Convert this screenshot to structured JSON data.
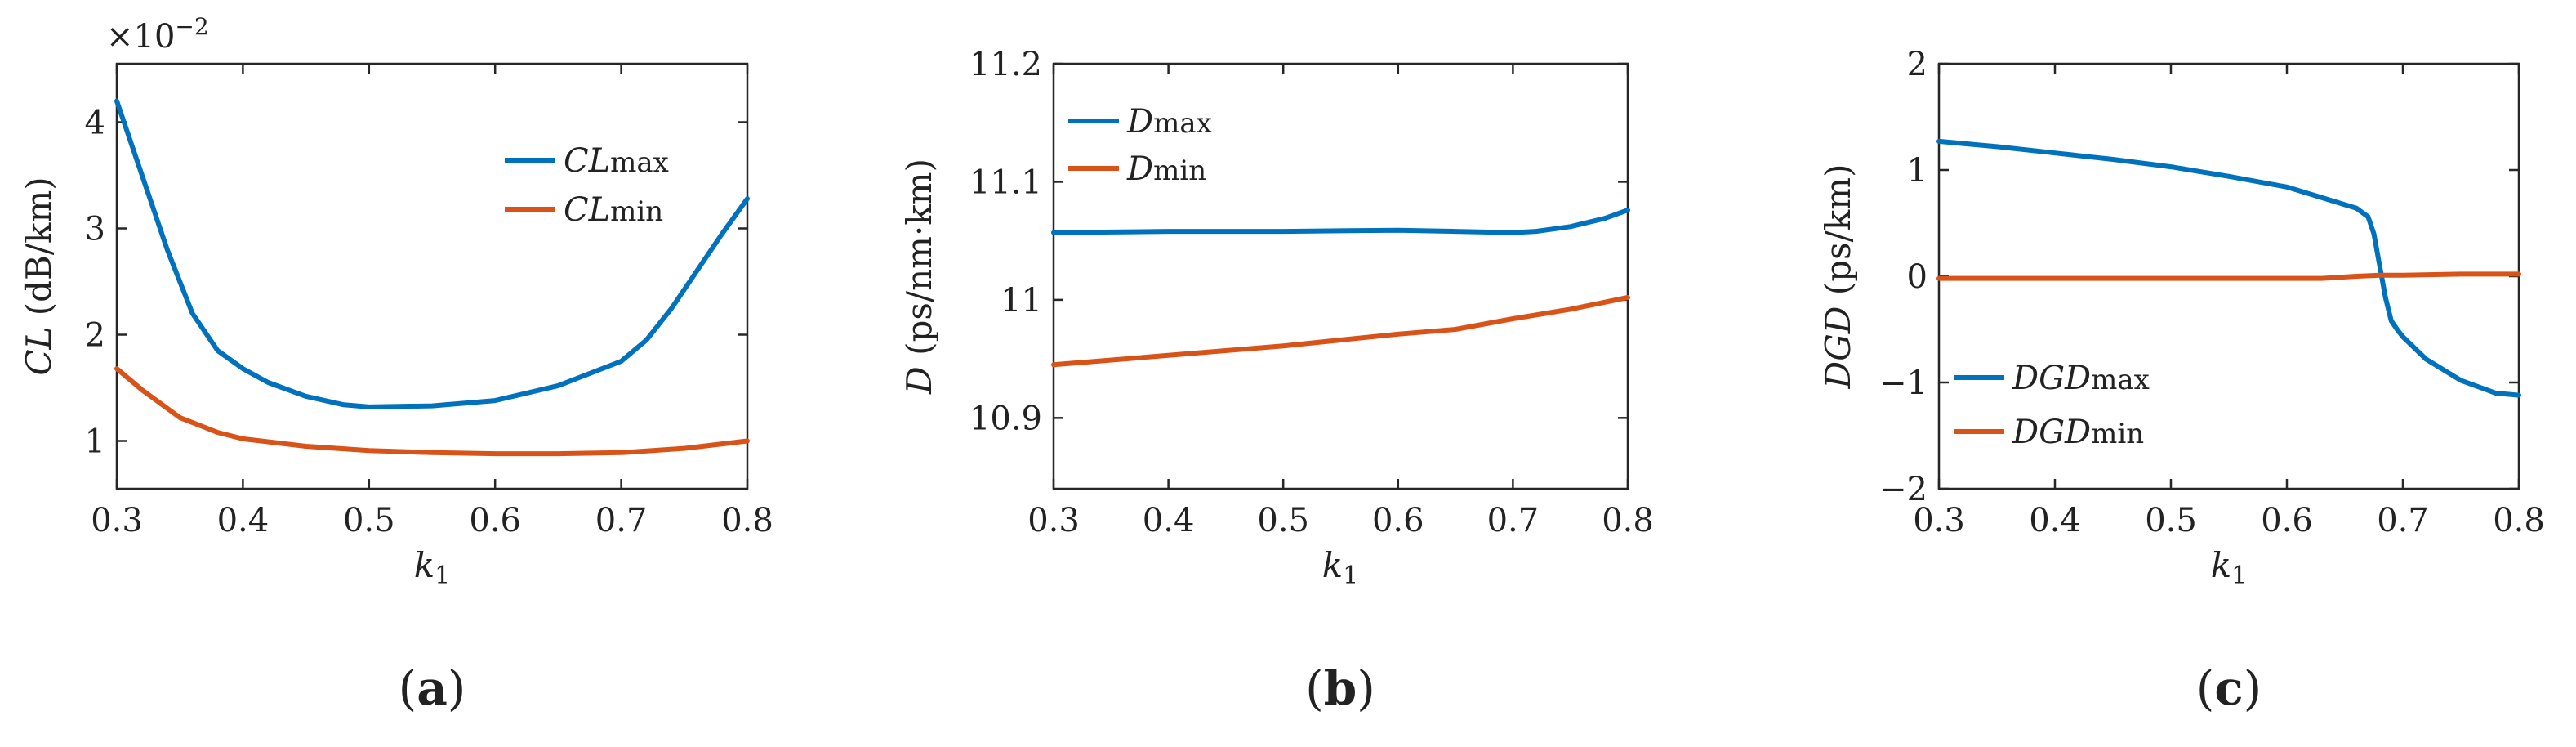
{
  "chart_data": [
    {
      "type": "line",
      "panel_label": "a",
      "exponent": "×10",
      "exponent_power": "−2",
      "xlabel": "k",
      "xlabel_sub": "1",
      "ylabel": "CL",
      "ylabel_unit": "(dB/km)",
      "xlim": [
        0.3,
        0.8
      ],
      "ylim": [
        0.55,
        4.55
      ],
      "xticks": [
        0.3,
        0.4,
        0.5,
        0.6,
        0.7,
        0.8
      ],
      "xtick_labels": [
        "0.3",
        "0.4",
        "0.5",
        "0.6",
        "0.7",
        "0.8"
      ],
      "yticks": [
        1,
        2,
        3,
        4
      ],
      "ytick_labels": [
        "1",
        "2",
        "3",
        "4"
      ],
      "legend_position": "top-right",
      "series": [
        {
          "name": "CL",
          "name_sub": "max",
          "color": "#0072BD",
          "x": [
            0.3,
            0.32,
            0.34,
            0.36,
            0.38,
            0.4,
            0.42,
            0.45,
            0.48,
            0.5,
            0.55,
            0.6,
            0.65,
            0.7,
            0.72,
            0.74,
            0.76,
            0.78,
            0.8
          ],
          "y": [
            4.2,
            3.5,
            2.8,
            2.2,
            1.85,
            1.68,
            1.55,
            1.42,
            1.34,
            1.32,
            1.33,
            1.38,
            1.52,
            1.75,
            1.95,
            2.25,
            2.6,
            2.95,
            3.28
          ]
        },
        {
          "name": "CL",
          "name_sub": "min",
          "color": "#D95319",
          "x": [
            0.3,
            0.32,
            0.35,
            0.38,
            0.4,
            0.45,
            0.5,
            0.55,
            0.6,
            0.65,
            0.7,
            0.75,
            0.8
          ],
          "y": [
            1.68,
            1.48,
            1.22,
            1.08,
            1.02,
            0.95,
            0.91,
            0.89,
            0.88,
            0.88,
            0.89,
            0.93,
            1.0
          ]
        }
      ]
    },
    {
      "type": "line",
      "panel_label": "b",
      "xlabel": "k",
      "xlabel_sub": "1",
      "ylabel": "D",
      "ylabel_unit": "(ps/nm·km)",
      "xlim": [
        0.3,
        0.8
      ],
      "ylim": [
        10.84,
        11.2
      ],
      "xticks": [
        0.3,
        0.4,
        0.5,
        0.6,
        0.7,
        0.8
      ],
      "xtick_labels": [
        "0.3",
        "0.4",
        "0.5",
        "0.6",
        "0.7",
        "0.8"
      ],
      "yticks": [
        10.9,
        11,
        11.1,
        11.2
      ],
      "ytick_labels": [
        "10.9",
        "11",
        "11.1",
        "11.2"
      ],
      "legend_position": "top-left",
      "series": [
        {
          "name": "D",
          "name_sub": "max",
          "color": "#0072BD",
          "x": [
            0.3,
            0.4,
            0.5,
            0.6,
            0.65,
            0.7,
            0.72,
            0.75,
            0.78,
            0.8
          ],
          "y": [
            11.057,
            11.058,
            11.058,
            11.059,
            11.058,
            11.057,
            11.058,
            11.062,
            11.069,
            11.076
          ]
        },
        {
          "name": "D",
          "name_sub": "min",
          "color": "#D95319",
          "x": [
            0.3,
            0.4,
            0.5,
            0.6,
            0.65,
            0.7,
            0.75,
            0.8
          ],
          "y": [
            10.945,
            10.953,
            10.961,
            10.971,
            10.975,
            10.984,
            10.992,
            11.002
          ]
        }
      ]
    },
    {
      "type": "line",
      "panel_label": "c",
      "xlabel": "k",
      "xlabel_sub": "1",
      "ylabel": "DGD",
      "ylabel_unit": "(ps/km)",
      "xlim": [
        0.3,
        0.8
      ],
      "ylim": [
        -2,
        2
      ],
      "xticks": [
        0.3,
        0.4,
        0.5,
        0.6,
        0.7,
        0.8
      ],
      "xtick_labels": [
        "0.3",
        "0.4",
        "0.5",
        "0.6",
        "0.7",
        "0.8"
      ],
      "yticks": [
        -2,
        -1,
        0,
        1,
        2
      ],
      "ytick_labels": [
        "−2",
        "−1",
        "0",
        "1",
        "2"
      ],
      "legend_position": "bottom-left",
      "series": [
        {
          "name": "DGD",
          "name_sub": "max",
          "color": "#0072BD",
          "x": [
            0.3,
            0.35,
            0.4,
            0.45,
            0.5,
            0.55,
            0.6,
            0.63,
            0.66,
            0.67,
            0.675,
            0.68,
            0.685,
            0.69,
            0.695,
            0.7,
            0.72,
            0.75,
            0.78,
            0.8
          ],
          "y": [
            1.27,
            1.22,
            1.16,
            1.1,
            1.03,
            0.94,
            0.84,
            0.74,
            0.64,
            0.56,
            0.4,
            0.1,
            -0.2,
            -0.42,
            -0.5,
            -0.57,
            -0.78,
            -0.98,
            -1.1,
            -1.12
          ]
        },
        {
          "name": "DGD",
          "name_sub": "min",
          "color": "#D95319",
          "x": [
            0.3,
            0.4,
            0.5,
            0.6,
            0.63,
            0.66,
            0.68,
            0.7,
            0.75,
            0.8
          ],
          "y": [
            -0.02,
            -0.02,
            -0.02,
            -0.02,
            -0.02,
            0.0,
            0.01,
            0.01,
            0.02,
            0.02
          ]
        }
      ]
    }
  ]
}
